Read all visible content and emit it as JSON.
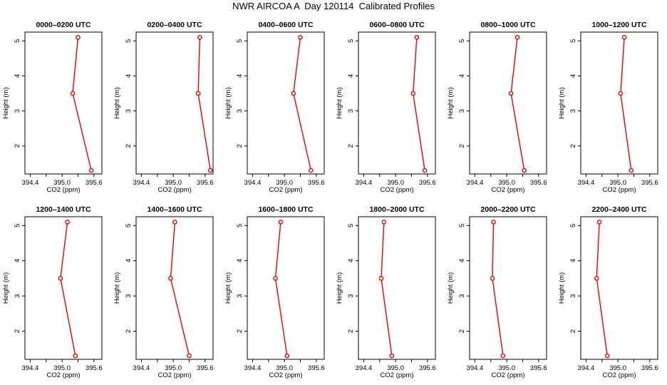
{
  "page": {
    "title": "NWR AIRCOA A  Day 120114  Calibrated Profiles"
  },
  "style": {
    "line_color": "#ee0000",
    "marker_color": "#ee0000",
    "axis_color": "#000000"
  },
  "chart_data": [
    {
      "type": "line",
      "title": "0000–0200 UTC",
      "xlabel": "CO2 (ppm)",
      "ylabel": "Height (m)",
      "xlim": [
        394.3,
        395.75
      ],
      "ylim": [
        1.2,
        5.25
      ],
      "xticks": [
        "394.4",
        "395.0",
        "395.6"
      ],
      "xtick_values": [
        394.4,
        395.0,
        395.6
      ],
      "yticks": [
        "2",
        "3",
        "4",
        "5"
      ],
      "series": [
        {
          "x": [
            395.3,
            395.2,
            395.55
          ],
          "y": [
            5.1,
            3.5,
            1.3
          ],
          "marker": "circle"
        }
      ]
    },
    {
      "type": "line",
      "title": "0200–0400 UTC",
      "xlabel": "CO2 (ppm)",
      "ylabel": "Height (m)",
      "xlim": [
        394.3,
        395.75
      ],
      "ylim": [
        1.2,
        5.25
      ],
      "xticks": [
        "394.4",
        "395.0",
        "395.6"
      ],
      "xtick_values": [
        394.4,
        395.0,
        395.6
      ],
      "yticks": [
        "2",
        "3",
        "4",
        "5"
      ],
      "series": [
        {
          "x": [
            395.5,
            395.47,
            395.7
          ],
          "y": [
            5.1,
            3.5,
            1.3
          ],
          "marker": "circle"
        }
      ]
    },
    {
      "type": "line",
      "title": "0400–0600 UTC",
      "xlabel": "CO2 (ppm)",
      "ylabel": "Height (m)",
      "xlim": [
        394.3,
        395.75
      ],
      "ylim": [
        1.2,
        5.25
      ],
      "xticks": [
        "394.4",
        "395.0",
        "395.6"
      ],
      "xtick_values": [
        394.4,
        395.0,
        395.6
      ],
      "yticks": [
        "2",
        "3",
        "4",
        "5"
      ],
      "series": [
        {
          "x": [
            395.3,
            395.17,
            395.5
          ],
          "y": [
            5.1,
            3.5,
            1.3
          ],
          "marker": "circle"
        }
      ]
    },
    {
      "type": "line",
      "title": "0600–0800 UTC",
      "xlabel": "CO2 (ppm)",
      "ylabel": "Height (m)",
      "xlim": [
        394.3,
        395.75
      ],
      "ylim": [
        1.2,
        5.25
      ],
      "xticks": [
        "394.4",
        "395.0",
        "395.6"
      ],
      "xtick_values": [
        394.4,
        395.0,
        395.6
      ],
      "yticks": [
        "2",
        "3",
        "4",
        "5"
      ],
      "series": [
        {
          "x": [
            395.4,
            395.33,
            395.55
          ],
          "y": [
            5.1,
            3.5,
            1.3
          ],
          "marker": "circle"
        }
      ]
    },
    {
      "type": "line",
      "title": "0800–1000 UTC",
      "xlabel": "CO2 (ppm)",
      "ylabel": "Height (m)",
      "xlim": [
        394.3,
        395.75
      ],
      "ylim": [
        1.2,
        5.25
      ],
      "xticks": [
        "394.4",
        "395.0",
        "395.6"
      ],
      "xtick_values": [
        394.4,
        395.0,
        395.6
      ],
      "yticks": [
        "2",
        "3",
        "4",
        "5"
      ],
      "series": [
        {
          "x": [
            395.2,
            395.08,
            395.33
          ],
          "y": [
            5.1,
            3.5,
            1.3
          ],
          "marker": "circle"
        }
      ]
    },
    {
      "type": "line",
      "title": "1000–1200 UTC",
      "xlabel": "CO2 (ppm)",
      "ylabel": "Height (m)",
      "xlim": [
        394.3,
        395.75
      ],
      "ylim": [
        1.2,
        5.25
      ],
      "xticks": [
        "394.4",
        "395.0",
        "395.6"
      ],
      "xtick_values": [
        394.4,
        395.0,
        395.6
      ],
      "yticks": [
        "2",
        "3",
        "4",
        "5"
      ],
      "series": [
        {
          "x": [
            395.12,
            395.05,
            395.25
          ],
          "y": [
            5.1,
            3.5,
            1.3
          ],
          "marker": "circle"
        }
      ]
    },
    {
      "type": "line",
      "title": "1200–1400 UTC",
      "xlabel": "CO2 (ppm)",
      "ylabel": "Height (m)",
      "xlim": [
        394.3,
        395.75
      ],
      "ylim": [
        1.2,
        5.25
      ],
      "xticks": [
        "394.4",
        "395.0",
        "395.6"
      ],
      "xtick_values": [
        394.4,
        395.0,
        395.6
      ],
      "yticks": [
        "2",
        "3",
        "4",
        "5"
      ],
      "series": [
        {
          "x": [
            395.1,
            394.97,
            395.25
          ],
          "y": [
            5.1,
            3.5,
            1.3
          ],
          "marker": "circle"
        }
      ]
    },
    {
      "type": "line",
      "title": "1400–1600 UTC",
      "xlabel": "CO2 (ppm)",
      "ylabel": "Height (m)",
      "xlim": [
        394.3,
        395.75
      ],
      "ylim": [
        1.2,
        5.25
      ],
      "xticks": [
        "394.4",
        "395.0",
        "395.6"
      ],
      "xtick_values": [
        394.4,
        395.0,
        395.6
      ],
      "yticks": [
        "2",
        "3",
        "4",
        "5"
      ],
      "series": [
        {
          "x": [
            395.03,
            394.95,
            395.3
          ],
          "y": [
            5.1,
            3.5,
            1.3
          ],
          "marker": "circle"
        }
      ]
    },
    {
      "type": "line",
      "title": "1600–1800 UTC",
      "xlabel": "CO2 (ppm)",
      "ylabel": "Height (m)",
      "xlim": [
        394.3,
        395.75
      ],
      "ylim": [
        1.2,
        5.25
      ],
      "xticks": [
        "394.4",
        "395.0",
        "395.6"
      ],
      "xtick_values": [
        394.4,
        395.0,
        395.6
      ],
      "yticks": [
        "2",
        "3",
        "4",
        "5"
      ],
      "series": [
        {
          "x": [
            394.93,
            394.83,
            395.05
          ],
          "y": [
            5.1,
            3.5,
            1.3
          ],
          "marker": "circle"
        }
      ]
    },
    {
      "type": "line",
      "title": "1800–2000 UTC",
      "xlabel": "CO2 (ppm)",
      "ylabel": "Height (m)",
      "xlim": [
        394.3,
        395.75
      ],
      "ylim": [
        1.2,
        5.25
      ],
      "xticks": [
        "394.4",
        "395.0",
        "395.6"
      ],
      "xtick_values": [
        394.4,
        395.0,
        395.6
      ],
      "yticks": [
        "2",
        "3",
        "4",
        "5"
      ],
      "series": [
        {
          "x": [
            394.78,
            394.73,
            394.93
          ],
          "y": [
            5.1,
            3.5,
            1.3
          ],
          "marker": "circle"
        }
      ]
    },
    {
      "type": "line",
      "title": "2000–2200 UTC",
      "xlabel": "CO2 (ppm)",
      "ylabel": "Height (m)",
      "xlim": [
        394.3,
        395.75
      ],
      "ylim": [
        1.2,
        5.25
      ],
      "xticks": [
        "394.4",
        "395.0",
        "395.6"
      ],
      "xtick_values": [
        394.4,
        395.0,
        395.6
      ],
      "yticks": [
        "2",
        "3",
        "4",
        "5"
      ],
      "series": [
        {
          "x": [
            394.75,
            394.73,
            394.93
          ],
          "y": [
            5.1,
            3.5,
            1.3
          ],
          "marker": "circle"
        }
      ]
    },
    {
      "type": "line",
      "title": "2200–2400 UTC",
      "xlabel": "CO2 (ppm)",
      "ylabel": "Height (m)",
      "xlim": [
        394.3,
        395.75
      ],
      "ylim": [
        1.2,
        5.25
      ],
      "xticks": [
        "394.4",
        "395.0",
        "395.6"
      ],
      "xtick_values": [
        394.4,
        395.0,
        395.6
      ],
      "yticks": [
        "2",
        "3",
        "4",
        "5"
      ],
      "series": [
        {
          "x": [
            394.65,
            394.6,
            394.8
          ],
          "y": [
            5.1,
            3.5,
            1.3
          ],
          "marker": "circle"
        }
      ]
    }
  ]
}
